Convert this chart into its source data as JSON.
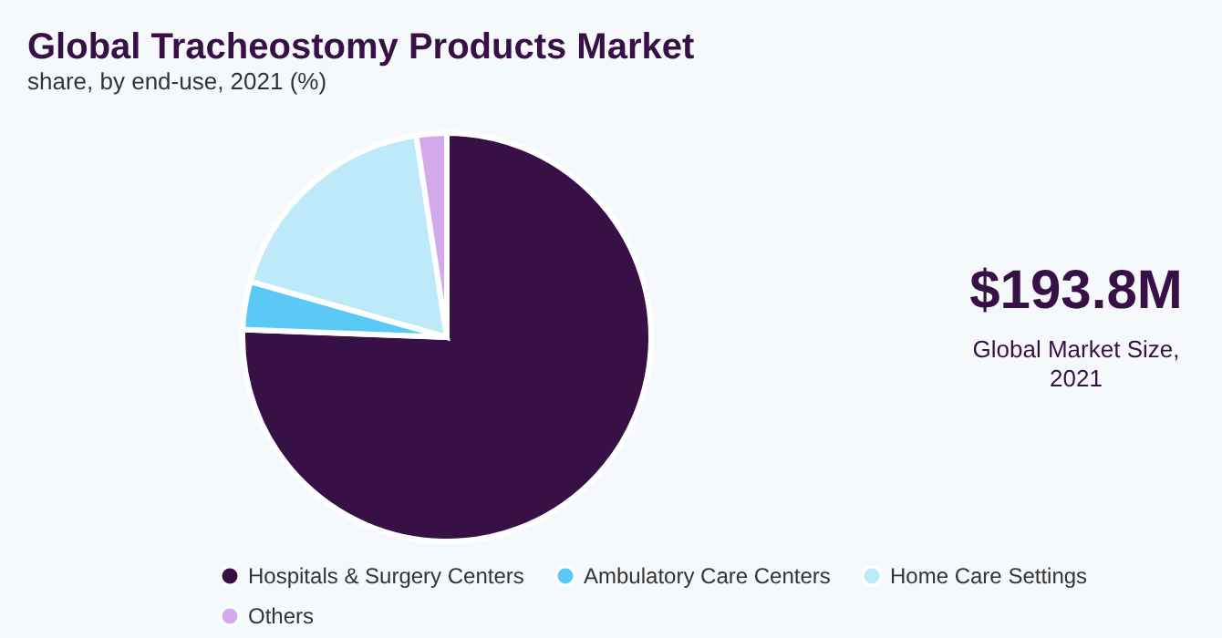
{
  "chart_data": {
    "type": "pie",
    "title": "Global Tracheostomy Products Market",
    "subtitle": "share, by end-use, 2021 (%)",
    "categories": [
      "Hospitals & Surgery Centers",
      "Ambulatory Care Centers",
      "Home Care Settings",
      "Others"
    ],
    "values": [
      75.6,
      3.8,
      18.2,
      2.4
    ],
    "colors": [
      "#371146",
      "#5bc9f5",
      "#bde9f9",
      "#d4a9eb"
    ],
    "legend": "bottom",
    "annotations": [
      "$193.8M",
      "Global Market Size,",
      "2021"
    ]
  }
}
